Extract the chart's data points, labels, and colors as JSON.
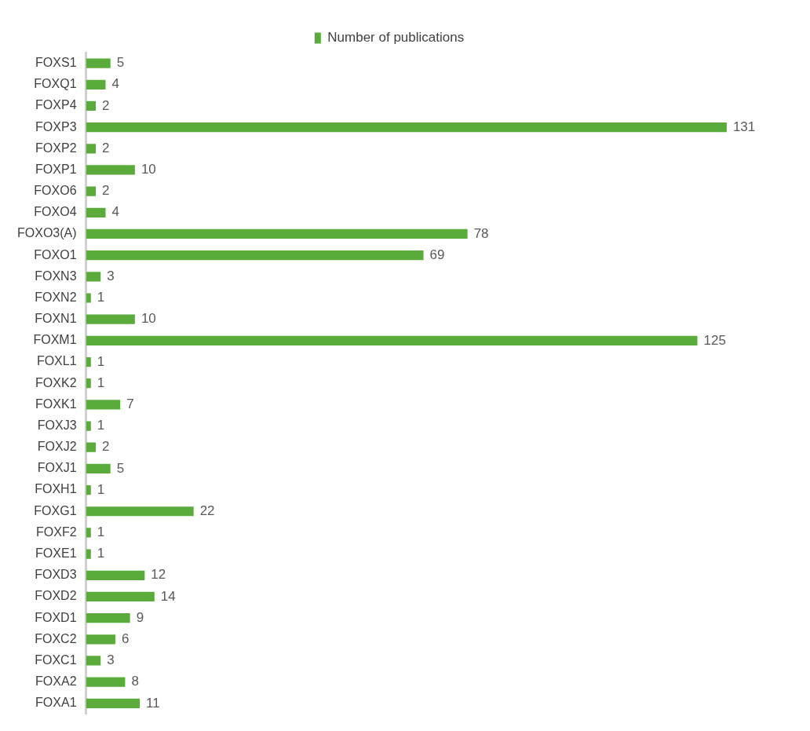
{
  "chart_data": {
    "type": "bar",
    "orientation": "horizontal",
    "categories": [
      "FOXS1",
      "FOXQ1",
      "FOXP4",
      "FOXP3",
      "FOXP2",
      "FOXP1",
      "FOXO6",
      "FOXO4",
      "FOXO3(A)",
      "FOXO1",
      "FOXN3",
      "FOXN2",
      "FOXN1",
      "FOXM1",
      "FOXL1",
      "FOXK2",
      "FOXK1",
      "FOXJ3",
      "FOXJ2",
      "FOXJ1",
      "FOXH1",
      "FOXG1",
      "FOXF2",
      "FOXE1",
      "FOXD3",
      "FOXD2",
      "FOXD1",
      "FOXC2",
      "FOXC1",
      "FOXA2",
      "FOXA1"
    ],
    "series": [
      {
        "name": "Number of publications",
        "color": "#5aaa3c",
        "values": [
          5,
          4,
          2,
          131,
          2,
          10,
          2,
          4,
          78,
          69,
          3,
          1,
          10,
          125,
          1,
          1,
          7,
          1,
          2,
          5,
          1,
          22,
          1,
          1,
          12,
          14,
          9,
          6,
          3,
          8,
          11
        ]
      }
    ],
    "data_labels": true,
    "legend": "top",
    "grid": false
  }
}
